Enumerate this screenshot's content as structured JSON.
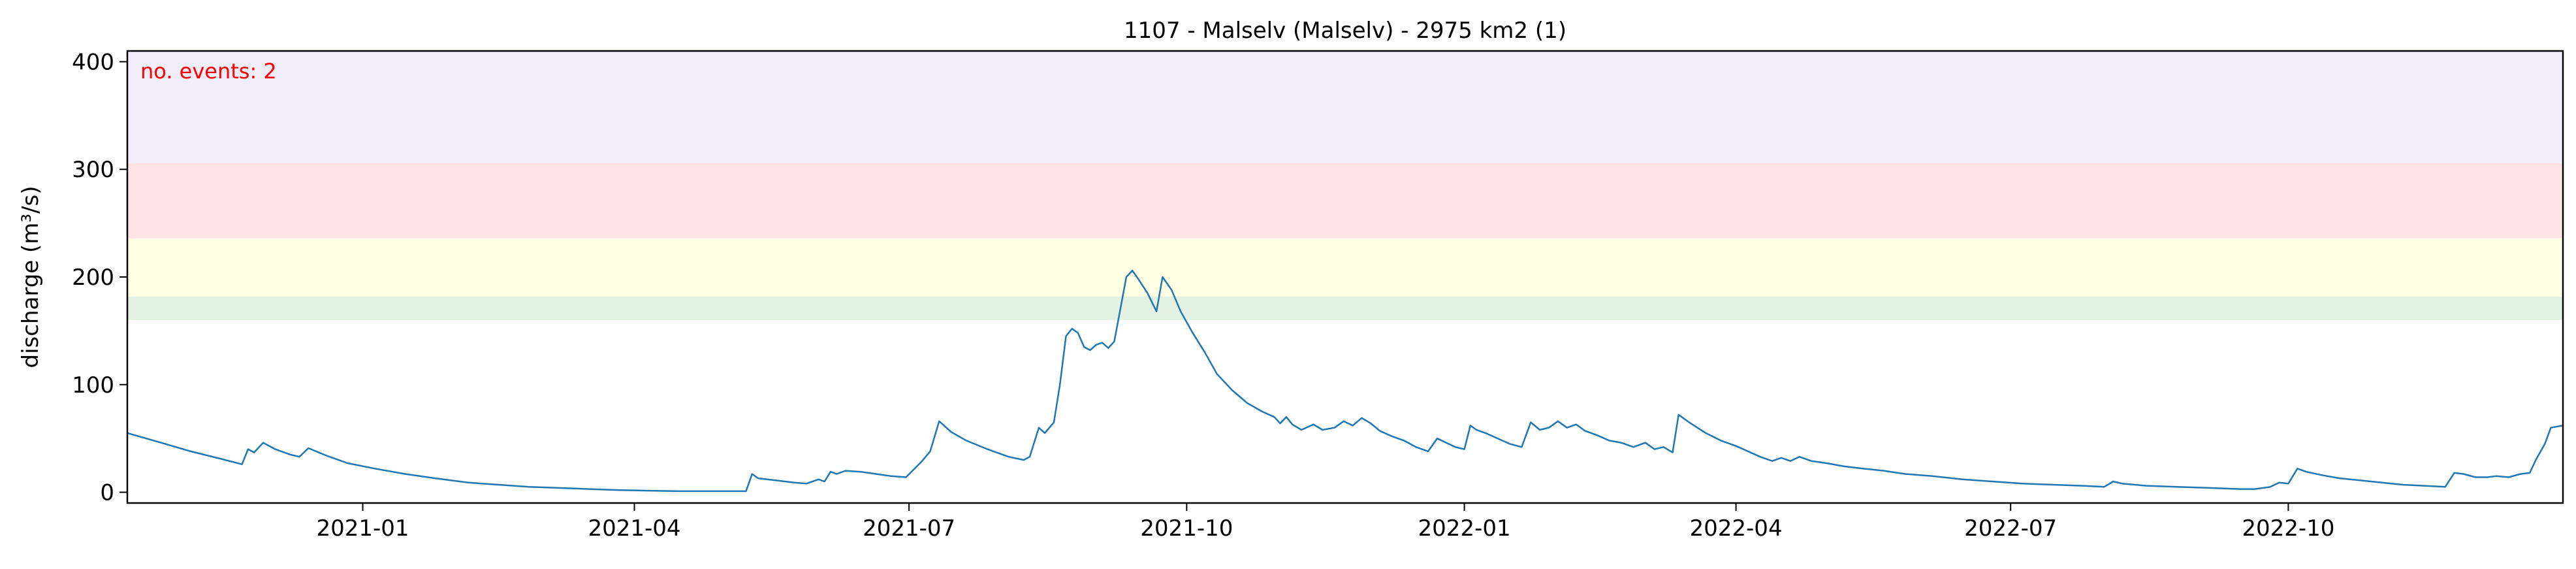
{
  "chart_data": {
    "type": "line",
    "title": "1107 - Malselv (Malselv) - 2975 km2 (1)",
    "ylabel": "discharge (m³/s)",
    "xlabel": "",
    "annotation": "no. events: 2",
    "x_range": [
      "2020-10-15",
      "2022-12-31"
    ],
    "ylim": [
      -10,
      410
    ],
    "x_ticks": [
      {
        "date": "2021-01-01",
        "label": "2021-01"
      },
      {
        "date": "2021-04-01",
        "label": "2021-04"
      },
      {
        "date": "2021-07-01",
        "label": "2021-07"
      },
      {
        "date": "2021-10-01",
        "label": "2021-10"
      },
      {
        "date": "2022-01-01",
        "label": "2022-01"
      },
      {
        "date": "2022-04-01",
        "label": "2022-04"
      },
      {
        "date": "2022-07-01",
        "label": "2022-07"
      },
      {
        "date": "2022-10-01",
        "label": "2022-10"
      }
    ],
    "y_ticks": [
      0,
      100,
      200,
      300,
      400
    ],
    "bands": [
      {
        "from": 160,
        "to": 182,
        "color": "#e3f1e3"
      },
      {
        "from": 182,
        "to": 236,
        "color": "#ffffe3"
      },
      {
        "from": 236,
        "to": 306,
        "color": "#ffe2e5"
      },
      {
        "from": 306,
        "to": 410,
        "color": "#f1eefa"
      }
    ],
    "series": [
      {
        "color": "#1f77b4",
        "points": [
          [
            "2020-10-15",
            55
          ],
          [
            "2020-10-25",
            47
          ],
          [
            "2020-11-05",
            38
          ],
          [
            "2020-11-15",
            31
          ],
          [
            "2020-11-22",
            26
          ],
          [
            "2020-11-24",
            40
          ],
          [
            "2020-11-26",
            37
          ],
          [
            "2020-11-29",
            46
          ],
          [
            "2020-12-03",
            40
          ],
          [
            "2020-12-08",
            35
          ],
          [
            "2020-12-11",
            33
          ],
          [
            "2020-12-14",
            41
          ],
          [
            "2020-12-20",
            34
          ],
          [
            "2020-12-27",
            27
          ],
          [
            "2021-01-05",
            22
          ],
          [
            "2021-01-15",
            17
          ],
          [
            "2021-01-25",
            13
          ],
          [
            "2021-02-05",
            9
          ],
          [
            "2021-02-15",
            7
          ],
          [
            "2021-02-25",
            5
          ],
          [
            "2021-03-07",
            4
          ],
          [
            "2021-03-17",
            3
          ],
          [
            "2021-03-27",
            2
          ],
          [
            "2021-04-06",
            1.5
          ],
          [
            "2021-04-16",
            1
          ],
          [
            "2021-04-25",
            1
          ],
          [
            "2021-05-05",
            1
          ],
          [
            "2021-05-08",
            1
          ],
          [
            "2021-05-10",
            17
          ],
          [
            "2021-05-12",
            13
          ],
          [
            "2021-05-18",
            11
          ],
          [
            "2021-05-24",
            9
          ],
          [
            "2021-05-28",
            8
          ],
          [
            "2021-06-01",
            12
          ],
          [
            "2021-06-03",
            10
          ],
          [
            "2021-06-05",
            19
          ],
          [
            "2021-06-07",
            17
          ],
          [
            "2021-06-10",
            20
          ],
          [
            "2021-06-15",
            19
          ],
          [
            "2021-06-20",
            17
          ],
          [
            "2021-06-25",
            15
          ],
          [
            "2021-06-30",
            14
          ],
          [
            "2021-07-05",
            28
          ],
          [
            "2021-07-08",
            38
          ],
          [
            "2021-07-11",
            66
          ],
          [
            "2021-07-15",
            56
          ],
          [
            "2021-07-20",
            48
          ],
          [
            "2021-07-27",
            40
          ],
          [
            "2021-08-03",
            33
          ],
          [
            "2021-08-08",
            30
          ],
          [
            "2021-08-10",
            33
          ],
          [
            "2021-08-13",
            60
          ],
          [
            "2021-08-15",
            55
          ],
          [
            "2021-08-18",
            65
          ],
          [
            "2021-08-20",
            100
          ],
          [
            "2021-08-22",
            145
          ],
          [
            "2021-08-24",
            152
          ],
          [
            "2021-08-26",
            148
          ],
          [
            "2021-08-28",
            135
          ],
          [
            "2021-08-30",
            132
          ],
          [
            "2021-09-01",
            137
          ],
          [
            "2021-09-03",
            139
          ],
          [
            "2021-09-05",
            134
          ],
          [
            "2021-09-07",
            140
          ],
          [
            "2021-09-09",
            170
          ],
          [
            "2021-09-11",
            200
          ],
          [
            "2021-09-13",
            206
          ],
          [
            "2021-09-15",
            198
          ],
          [
            "2021-09-18",
            185
          ],
          [
            "2021-09-21",
            168
          ],
          [
            "2021-09-23",
            200
          ],
          [
            "2021-09-26",
            188
          ],
          [
            "2021-09-29",
            168
          ],
          [
            "2021-10-03",
            148
          ],
          [
            "2021-10-07",
            130
          ],
          [
            "2021-10-11",
            110
          ],
          [
            "2021-10-16",
            95
          ],
          [
            "2021-10-21",
            83
          ],
          [
            "2021-10-26",
            75
          ],
          [
            "2021-10-30",
            70
          ],
          [
            "2021-11-01",
            64
          ],
          [
            "2021-11-03",
            70
          ],
          [
            "2021-11-05",
            63
          ],
          [
            "2021-11-08",
            58
          ],
          [
            "2021-11-12",
            63
          ],
          [
            "2021-11-15",
            58
          ],
          [
            "2021-11-19",
            60
          ],
          [
            "2021-11-22",
            66
          ],
          [
            "2021-11-25",
            62
          ],
          [
            "2021-11-28",
            69
          ],
          [
            "2021-12-01",
            64
          ],
          [
            "2021-12-04",
            57
          ],
          [
            "2021-12-08",
            52
          ],
          [
            "2021-12-12",
            48
          ],
          [
            "2021-12-16",
            42
          ],
          [
            "2021-12-20",
            38
          ],
          [
            "2021-12-23",
            50
          ],
          [
            "2021-12-26",
            46
          ],
          [
            "2021-12-29",
            42
          ],
          [
            "2022-01-01",
            40
          ],
          [
            "2022-01-03",
            62
          ],
          [
            "2022-01-05",
            58
          ],
          [
            "2022-01-08",
            55
          ],
          [
            "2022-01-12",
            50
          ],
          [
            "2022-01-16",
            45
          ],
          [
            "2022-01-20",
            42
          ],
          [
            "2022-01-23",
            65
          ],
          [
            "2022-01-26",
            58
          ],
          [
            "2022-01-29",
            60
          ],
          [
            "2022-02-01",
            66
          ],
          [
            "2022-02-04",
            60
          ],
          [
            "2022-02-07",
            63
          ],
          [
            "2022-02-10",
            57
          ],
          [
            "2022-02-14",
            53
          ],
          [
            "2022-02-18",
            48
          ],
          [
            "2022-02-22",
            46
          ],
          [
            "2022-02-26",
            42
          ],
          [
            "2022-03-02",
            46
          ],
          [
            "2022-03-05",
            40
          ],
          [
            "2022-03-08",
            42
          ],
          [
            "2022-03-11",
            37
          ],
          [
            "2022-03-13",
            72
          ],
          [
            "2022-03-17",
            64
          ],
          [
            "2022-03-22",
            55
          ],
          [
            "2022-03-27",
            48
          ],
          [
            "2022-04-01",
            43
          ],
          [
            "2022-04-05",
            38
          ],
          [
            "2022-04-09",
            33
          ],
          [
            "2022-04-13",
            29
          ],
          [
            "2022-04-16",
            32
          ],
          [
            "2022-04-19",
            29
          ],
          [
            "2022-04-22",
            33
          ],
          [
            "2022-04-26",
            29
          ],
          [
            "2022-05-01",
            27
          ],
          [
            "2022-05-07",
            24
          ],
          [
            "2022-05-13",
            22
          ],
          [
            "2022-05-20",
            20
          ],
          [
            "2022-05-27",
            17
          ],
          [
            "2022-06-05",
            15
          ],
          [
            "2022-06-15",
            12
          ],
          [
            "2022-06-25",
            10
          ],
          [
            "2022-07-05",
            8
          ],
          [
            "2022-07-15",
            7
          ],
          [
            "2022-07-25",
            6
          ],
          [
            "2022-08-01",
            5
          ],
          [
            "2022-08-04",
            10
          ],
          [
            "2022-08-07",
            8
          ],
          [
            "2022-08-15",
            6
          ],
          [
            "2022-08-25",
            5
          ],
          [
            "2022-09-05",
            4
          ],
          [
            "2022-09-15",
            3
          ],
          [
            "2022-09-20",
            3
          ],
          [
            "2022-09-25",
            5
          ],
          [
            "2022-09-28",
            9
          ],
          [
            "2022-10-01",
            8
          ],
          [
            "2022-10-04",
            22
          ],
          [
            "2022-10-07",
            19
          ],
          [
            "2022-10-12",
            16
          ],
          [
            "2022-10-18",
            13
          ],
          [
            "2022-10-25",
            11
          ],
          [
            "2022-11-01",
            9
          ],
          [
            "2022-11-08",
            7
          ],
          [
            "2022-11-15",
            6
          ],
          [
            "2022-11-22",
            5
          ],
          [
            "2022-11-25",
            18
          ],
          [
            "2022-11-28",
            17
          ],
          [
            "2022-12-02",
            14
          ],
          [
            "2022-12-06",
            14
          ],
          [
            "2022-12-09",
            15
          ],
          [
            "2022-12-13",
            14
          ],
          [
            "2022-12-17",
            17
          ],
          [
            "2022-12-20",
            18
          ],
          [
            "2022-12-22",
            30
          ],
          [
            "2022-12-25",
            45
          ],
          [
            "2022-12-27",
            60
          ],
          [
            "2022-12-31",
            62
          ]
        ]
      }
    ],
    "event_markers": []
  }
}
